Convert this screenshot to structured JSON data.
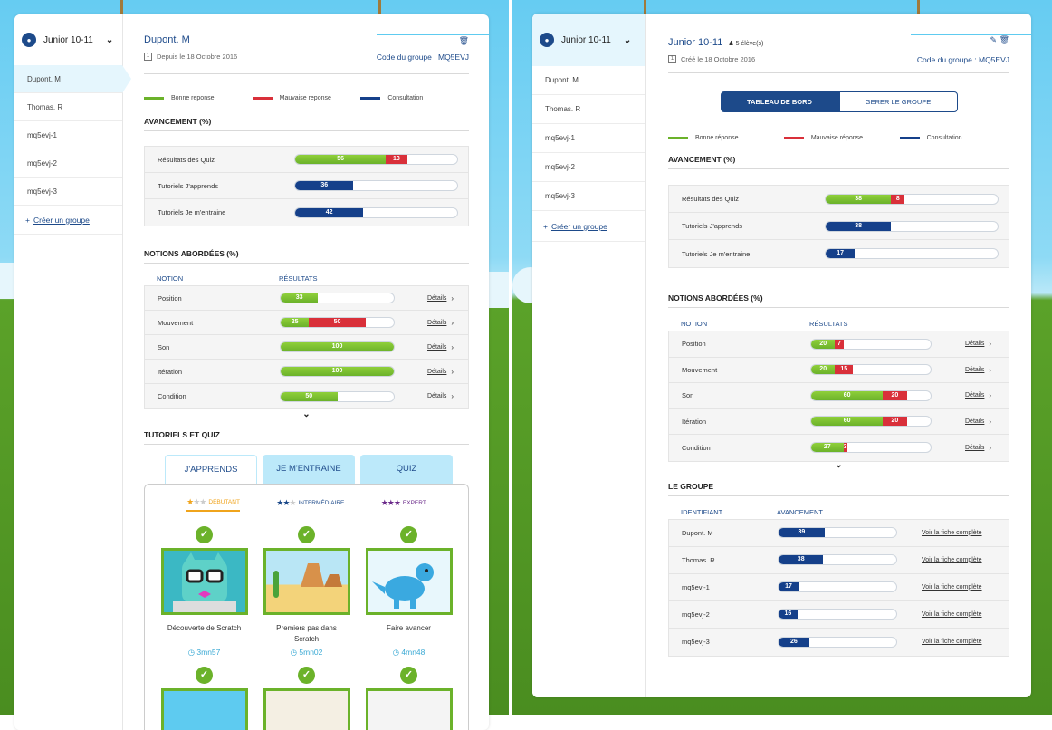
{
  "left": {
    "sidebar": {
      "group_name": "Junior 10-11",
      "items": [
        "Dupont. M",
        "Thomas. R",
        "mq5evj-1",
        "mq5evj-2",
        "mq5evj-3"
      ],
      "create_label": "Créer un groupe"
    },
    "header": {
      "student_name": "Dupont. M",
      "since": "Depuis le 18 Octobre 2016",
      "code_label": "Code du groupe",
      "code_value": ": MQ5EVJ"
    },
    "legend": [
      "Bonne reponse",
      "Mauvaise reponse",
      "Consultation"
    ],
    "progress": {
      "title": "AVANCEMENT (%)",
      "rows": [
        {
          "label": "Résultats des Quiz",
          "good": 56,
          "bad": 13
        },
        {
          "label": "Tutoriels J'apprends",
          "consult": 36
        },
        {
          "label": "Tutoriels Je m'entraine",
          "consult": 42
        }
      ]
    },
    "notions": {
      "title": "NOTIONS ABORDÉES (%)",
      "col_notion": "NOTION",
      "col_results": "RÉSULTATS",
      "details_label": "Détails",
      "rows": [
        {
          "label": "Position",
          "good": 33,
          "bad": 0
        },
        {
          "label": "Mouvement",
          "good": 25,
          "bad": 50
        },
        {
          "label": "Son",
          "good": 100,
          "bad": 0
        },
        {
          "label": "Itération",
          "good": 100,
          "bad": 0
        },
        {
          "label": "Condition",
          "good": 50,
          "bad": 0
        }
      ]
    },
    "tutorials": {
      "title": "TUTORIELS ET QUIZ",
      "tabs": [
        "J'APPRENDS",
        "JE M'ENTRAINE",
        "QUIZ"
      ],
      "levels": [
        "DÉBUTANT",
        "INTERMÉDIAIRE",
        "EXPERT"
      ],
      "cards": [
        {
          "title": "Découverte de Scratch",
          "time": "3mn57"
        },
        {
          "title": "Premiers pas dans Scratch",
          "time": "5mn02"
        },
        {
          "title": "Faire avancer",
          "time": "4mn48"
        }
      ]
    }
  },
  "right": {
    "sidebar": {
      "group_name": "Junior 10-11",
      "items": [
        "Dupont. M",
        "Thomas. R",
        "mq5evj-1",
        "mq5evj-2",
        "mq5evj-3"
      ],
      "create_label": "Créer un groupe"
    },
    "header": {
      "group_name": "Junior 10-11",
      "members": "5 élève(s)",
      "created": "Créé le 18 Octobre 2016",
      "code_label": "Code du groupe",
      "code_value": ": MQ5EVJ"
    },
    "toggle": [
      "TABLEAU DE BORD",
      "GERER LE GROUPE"
    ],
    "legend": [
      "Bonne réponse",
      "Mauvaise réponse",
      "Consultation"
    ],
    "progress": {
      "title": "AVANCEMENT (%)",
      "rows": [
        {
          "label": "Résultats des Quiz",
          "good": 38,
          "bad": 8
        },
        {
          "label": "Tutoriels J'apprends",
          "consult": 38
        },
        {
          "label": "Tutoriels Je m'entraine",
          "consult": 17
        }
      ]
    },
    "notions": {
      "title": "NOTIONS ABORDÉES (%)",
      "col_notion": "NOTION",
      "col_results": "RÉSULTATS",
      "details_label": "Détails",
      "rows": [
        {
          "label": "Position",
          "good": 20,
          "bad": 7
        },
        {
          "label": "Mouvement",
          "good": 20,
          "bad": 15
        },
        {
          "label": "Son",
          "good": 60,
          "bad": 20
        },
        {
          "label": "Itération",
          "good": 60,
          "bad": 20
        },
        {
          "label": "Condition",
          "good": 27,
          "bad": 3
        }
      ]
    },
    "group": {
      "title": "LE GROUPE",
      "col_id": "IDENTIFIANT",
      "col_progress": "AVANCEMENT",
      "link_label": "Voir la fiche complète",
      "rows": [
        {
          "id": "Dupont. M",
          "value": 39
        },
        {
          "id": "Thomas. R",
          "value": 38
        },
        {
          "id": "mq5evj-1",
          "value": 17
        },
        {
          "id": "mq5evj-2",
          "value": 16
        },
        {
          "id": "mq5evj-3",
          "value": 26
        }
      ]
    }
  },
  "colors": {
    "good": "#6bb22a",
    "bad": "#d9303a",
    "consult": "#15408a",
    "accent": "#1d4a8a",
    "sky": "#66ccf2"
  }
}
